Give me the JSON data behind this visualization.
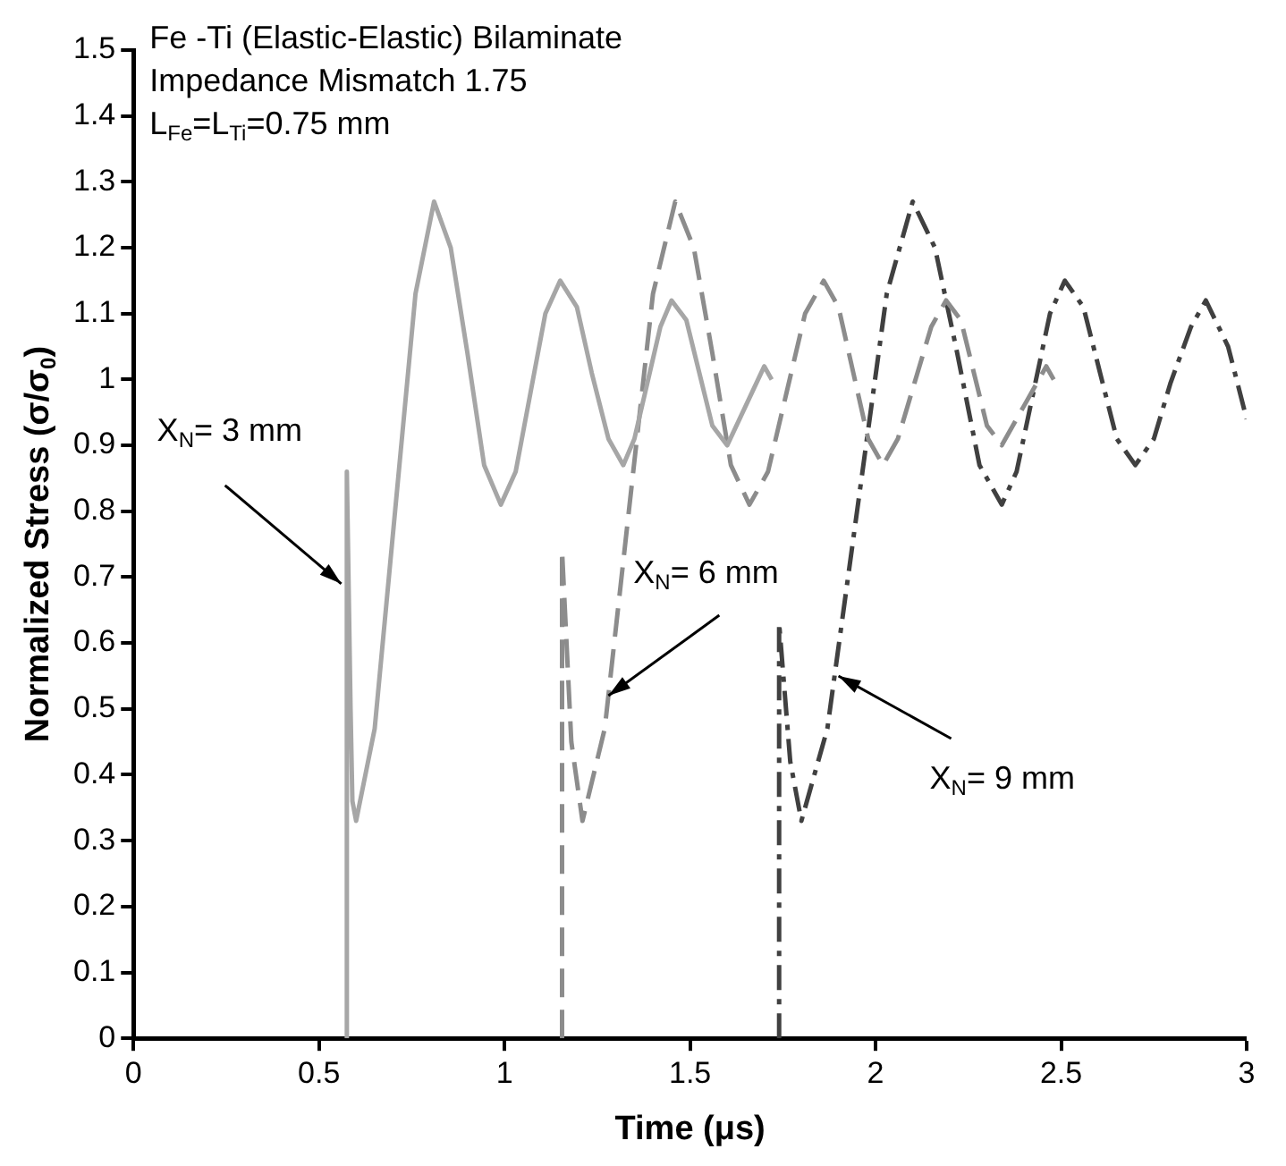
{
  "chart_data": {
    "type": "line",
    "xlabel": "Time (μs)",
    "ylabel": "Normalized Stress (σ/σ$_{0}$)",
    "xlim": [
      0,
      3
    ],
    "xticks": [
      0,
      0.5,
      1,
      1.5,
      2,
      2.5,
      3
    ],
    "ylim": [
      0,
      1.5
    ],
    "yticks": [
      0,
      0.1,
      0.2,
      0.3,
      0.4,
      0.5,
      0.6,
      0.7,
      0.8,
      0.9,
      1,
      1.1,
      1.2,
      1.3,
      1.4,
      1.5
    ],
    "grid": false,
    "legend": false,
    "marker": "none",
    "series": [
      {
        "color": "#a6a6a6",
        "line_style": "solid",
        "x": [
          0.575,
          0.575,
          0.585,
          0.59,
          0.6,
          0.65,
          0.705,
          0.76,
          0.81,
          0.855,
          0.9,
          0.945,
          0.99,
          1.03,
          1.07,
          1.11,
          1.15,
          1.195,
          1.235,
          1.28,
          1.32,
          1.35,
          1.385,
          1.42,
          1.45,
          1.49,
          1.525,
          1.56,
          1.6,
          1.65,
          1.7,
          1.72
        ],
        "values": [
          0,
          0.86,
          0.5,
          0.36,
          0.33,
          0.47,
          0.8,
          1.13,
          1.27,
          1.2,
          1.04,
          0.87,
          0.81,
          0.86,
          0.98,
          1.1,
          1.15,
          1.11,
          1.01,
          0.91,
          0.87,
          0.91,
          0.995,
          1.08,
          1.12,
          1.09,
          1.01,
          0.93,
          0.9,
          0.96,
          1.02,
          1.0
        ]
      },
      {
        "color": "#8c8c8c",
        "line_style": "dashed",
        "x": [
          1.155,
          1.155,
          1.18,
          1.21,
          1.27,
          1.335,
          1.4,
          1.46,
          1.51,
          1.56,
          1.61,
          1.66,
          1.71,
          1.76,
          1.81,
          1.86,
          1.9,
          1.94,
          1.98,
          2.02,
          2.06,
          2.105,
          2.15,
          2.19,
          2.23,
          2.265,
          2.3,
          2.34,
          2.4,
          2.46,
          2.48
        ],
        "values": [
          0,
          0.74,
          0.45,
          0.33,
          0.47,
          0.8,
          1.13,
          1.27,
          1.2,
          1.04,
          0.87,
          0.81,
          0.86,
          0.98,
          1.1,
          1.15,
          1.11,
          1.01,
          0.91,
          0.87,
          0.91,
          0.995,
          1.08,
          1.12,
          1.09,
          1.01,
          0.93,
          0.9,
          0.96,
          1.02,
          1.0
        ]
      },
      {
        "color": "#404040",
        "line_style": "dashdot",
        "x": [
          1.74,
          1.74,
          1.77,
          1.8,
          1.87,
          1.95,
          2.03,
          2.1,
          2.16,
          2.22,
          2.28,
          2.34,
          2.38,
          2.425,
          2.47,
          2.51,
          2.56,
          2.605,
          2.65,
          2.7,
          2.75,
          2.795,
          2.85,
          2.89,
          2.95,
          3.0
        ],
        "values": [
          0,
          0.63,
          0.42,
          0.33,
          0.47,
          0.8,
          1.13,
          1.27,
          1.2,
          1.04,
          0.87,
          0.81,
          0.86,
          0.98,
          1.1,
          1.15,
          1.11,
          1.01,
          0.91,
          0.87,
          0.91,
          0.995,
          1.08,
          1.12,
          1.05,
          0.94
        ]
      }
    ],
    "annotations": [
      "Fe -Ti (Elastic-Elastic) Bilaminate",
      "Impedance Mismatch 1.75",
      "L$_{Fe}$=L$_{Ti}$=0.75 mm",
      {
        "text": "X$_{N}$= 3 mm",
        "x": 0.56,
        "y": 0.69
      },
      {
        "text": "X$_{N}$= 6 mm",
        "x": 1.28,
        "y": 0.52
      },
      {
        "text": "X$_{N}$= 9 mm",
        "x": 1.9,
        "y": 0.55
      }
    ]
  }
}
